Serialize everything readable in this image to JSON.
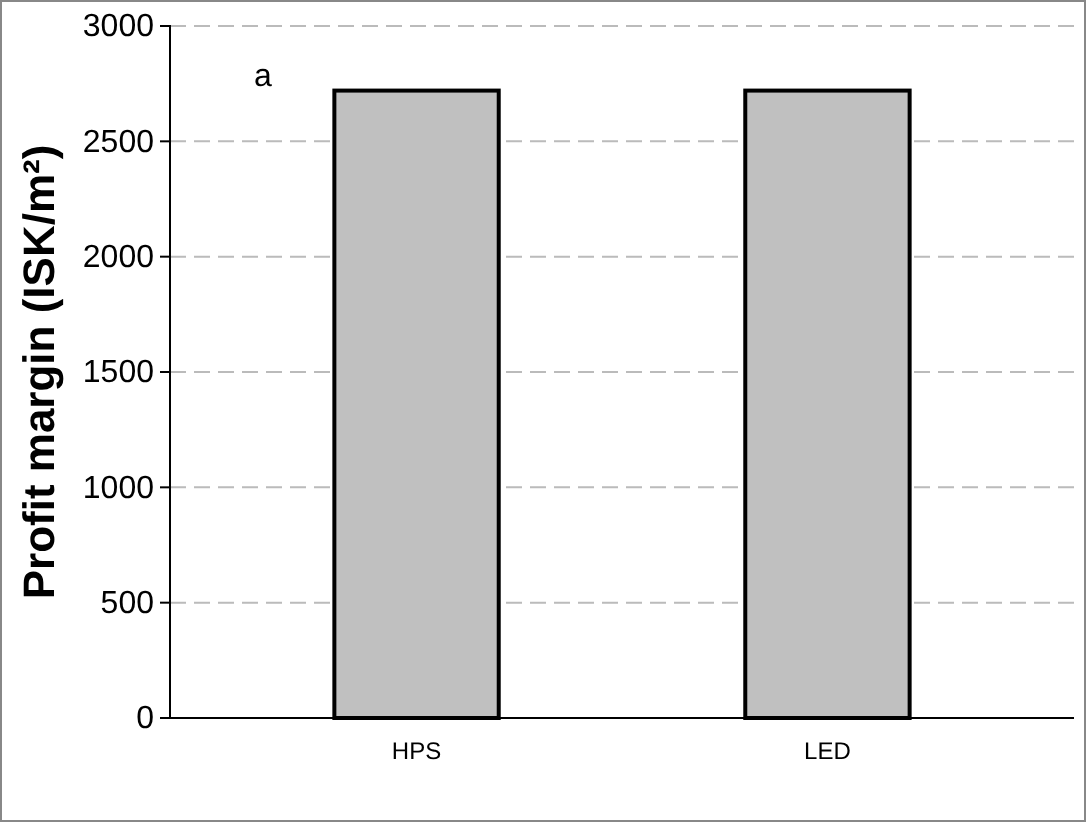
{
  "chart_data": {
    "type": "bar",
    "ylabel": "Profit margin (ISK/m²)",
    "categories": [
      "HPS",
      "LED"
    ],
    "values": [
      2720,
      2720
    ],
    "color": "#c0c0c0",
    "ylim": [
      0,
      3000
    ],
    "yticks": [
      0,
      500,
      1000,
      1500,
      2000,
      2500,
      3000
    ],
    "grid": "y",
    "annotations": [
      "a"
    ]
  }
}
